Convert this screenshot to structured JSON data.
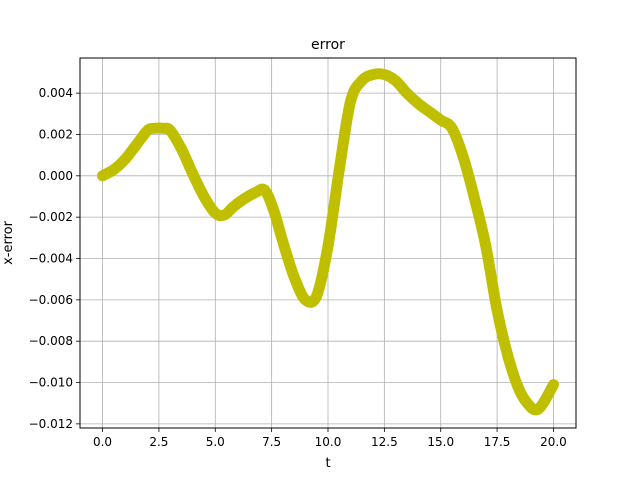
{
  "chart_data": {
    "type": "line",
    "title": "error",
    "xlabel": "t",
    "ylabel": "x-error",
    "xlim": [
      -1.0,
      21.0
    ],
    "ylim": [
      -0.0122,
      0.0057
    ],
    "grid": true,
    "legend": "none",
    "x_ticks": [
      0.0,
      2.5,
      5.0,
      7.5,
      10.0,
      12.5,
      15.0,
      17.5,
      20.0
    ],
    "x_tick_labels": [
      "0.0",
      "2.5",
      "5.0",
      "7.5",
      "10.0",
      "12.5",
      "15.0",
      "17.5",
      "20.0"
    ],
    "y_ticks": [
      0.004,
      0.002,
      0.0,
      -0.002,
      -0.004,
      -0.006,
      -0.008,
      -0.01,
      -0.012
    ],
    "y_tick_labels": [
      "0.004",
      "0.002",
      "0.000",
      "−0.002",
      "−0.004",
      "−0.006",
      "−0.008",
      "−0.010",
      "−0.012"
    ],
    "series": [
      {
        "color": "#bfbf00",
        "style": "thick-markers",
        "x": [
          0.0,
          0.5,
          1.0,
          1.5,
          2.0,
          2.3,
          2.7,
          3.0,
          3.5,
          4.0,
          4.5,
          5.0,
          5.4,
          5.8,
          6.3,
          6.8,
          7.2,
          7.6,
          8.0,
          8.5,
          9.0,
          9.5,
          10.0,
          10.5,
          11.0,
          11.5,
          12.0,
          12.5,
          13.0,
          13.5,
          14.0,
          14.5,
          15.0,
          15.5,
          16.0,
          16.5,
          17.0,
          17.5,
          18.0,
          18.5,
          19.0,
          19.3,
          19.6,
          20.0
        ],
        "y": [
          0.0,
          0.0003,
          0.0008,
          0.0015,
          0.0022,
          0.0023,
          0.0023,
          0.0022,
          0.0013,
          0.0001,
          -0.001,
          -0.0018,
          -0.0019,
          -0.0015,
          -0.0011,
          -0.0008,
          -0.0007,
          -0.0017,
          -0.0032,
          -0.0049,
          -0.006,
          -0.0058,
          -0.0034,
          0.0003,
          0.0036,
          0.0046,
          0.0049,
          0.0049,
          0.0046,
          0.004,
          0.0035,
          0.0031,
          0.0027,
          0.0023,
          0.0009,
          -0.0011,
          -0.0034,
          -0.0065,
          -0.0088,
          -0.0104,
          -0.0112,
          -0.0113,
          -0.0109,
          -0.0101
        ]
      }
    ]
  }
}
